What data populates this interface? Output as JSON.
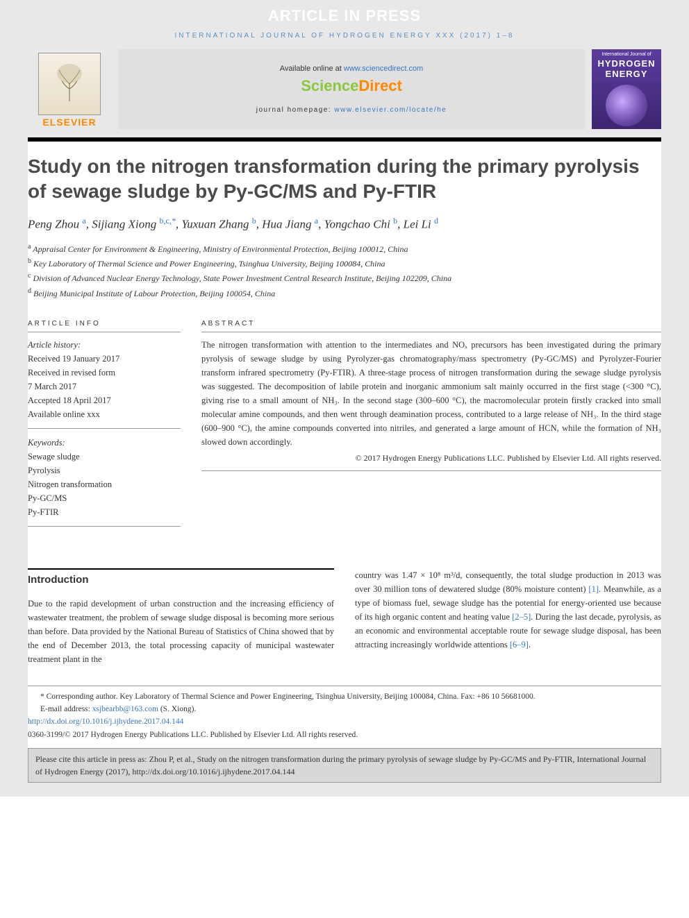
{
  "banner": {
    "text": "ARTICLE IN PRESS"
  },
  "journal_line": "INTERNATIONAL JOURNAL OF HYDROGEN ENERGY XXX (2017) 1–8",
  "header": {
    "elsevier_label": "ELSEVIER",
    "available_prefix": "Available online at ",
    "available_link": "www.sciencedirect.com",
    "sd_sci": "Science",
    "sd_dir": "Direct",
    "homepage_prefix": "journal homepage: ",
    "homepage_link": "www.elsevier.com/locate/he",
    "cover_top": "International Journal of",
    "cover_main": "HYDROGEN\nENERGY"
  },
  "title": "Study on the nitrogen transformation during the primary pyrolysis of sewage sludge by Py-GC/MS and Py-FTIR",
  "authors_html": "Peng Zhou <sup class='aff'>a</sup>, Sijiang Xiong <sup class='aff'>b,c,</sup><sup class='star'>*</sup>, Yuxuan Zhang <sup class='aff'>b</sup>, Hua Jiang <sup class='aff'>a</sup>, Yongchao Chi <sup class='aff'>b</sup>, Lei Li <sup class='aff'>d</sup>",
  "affiliations": [
    {
      "sup": "a",
      "text": "Appraisal Center for Environment & Engineering, Ministry of Environmental Protection, Beijing 100012, China"
    },
    {
      "sup": "b",
      "text": "Key Laboratory of Thermal Science and Power Engineering, Tsinghua University, Beijing 100084, China"
    },
    {
      "sup": "c",
      "text": "Division of Advanced Nuclear Energy Technology, State Power Investment Central Research Institute, Beijing 102209, China"
    },
    {
      "sup": "d",
      "text": "Beijing Municipal Institute of Labour Protection, Beijing 100054, China"
    }
  ],
  "article_info": {
    "head": "ARTICLE INFO",
    "history_label": "Article history:",
    "history": [
      "Received 19 January 2017",
      "Received in revised form",
      "7 March 2017",
      "Accepted 18 April 2017",
      "Available online xxx"
    ],
    "keywords_label": "Keywords:",
    "keywords": [
      "Sewage sludge",
      "Pyrolysis",
      "Nitrogen transformation",
      "Py-GC/MS",
      "Py-FTIR"
    ]
  },
  "abstract": {
    "head": "ABSTRACT",
    "text": "The nitrogen transformation with attention to the intermediates and NOₓ precursors has been investigated during the primary pyrolysis of sewage sludge by using Pyrolyzer-gas chromatography/mass spectrometry (Py-GC/MS) and Pyrolyzer-Fourier transform infrared spectrometry (Py-FTIR). A three-stage process of nitrogen transformation during the sewage sludge pyrolysis was suggested. The decomposition of labile protein and inorganic ammonium salt mainly occurred in the first stage (<300 °C), giving rise to a small amount of NH₃. In the second stage (300–600 °C), the macromolecular protein firstly cracked into small molecular amine compounds, and then went through deamination process, contributed to a large release of NH₃. In the third stage (600–900 °C), the amine compounds converted into nitriles, and generated a large amount of HCN, while the formation of NH₃ slowed down accordingly.",
    "copyright": "© 2017 Hydrogen Energy Publications LLC. Published by Elsevier Ltd. All rights reserved."
  },
  "intro": {
    "head": "Introduction",
    "col1": "Due to the rapid development of urban construction and the increasing efficiency of wastewater treatment, the problem of sewage sludge disposal is becoming more serious than before. Data provided by the National Bureau of Statistics of China showed that by the end of December 2013, the total processing capacity of municipal wastewater treatment plant in the",
    "col2_pre": "country was 1.47 × 10⁸ m³/d, consequently, the total sludge production in 2013 was over 30 million tons of dewatered sludge (80% moisture content) ",
    "ref1": "[1]",
    "col2_mid": ". Meanwhile, as a type of biomass fuel, sewage sludge has the potential for energy-oriented use because of its high organic content and heating value ",
    "ref2": "[2–5]",
    "col2_mid2": ". During the last decade, pyrolysis, as an economic and environmental acceptable route for sewage sludge disposal, has been attracting increasingly worldwide attentions ",
    "ref3": "[6–9]",
    "col2_end": "."
  },
  "footnotes": {
    "corr": "* Corresponding author. Key Laboratory of Thermal Science and Power Engineering, Tsinghua University, Beijing 100084, China. Fax: +86 10 56681000.",
    "email_label": "E-mail address: ",
    "email": "xsjbearbb@163.com",
    "email_suffix": " (S. Xiong).",
    "doi": "http://dx.doi.org/10.1016/j.ijhydene.2017.04.144",
    "issn": "0360-3199/© 2017 Hydrogen Energy Publications LLC. Published by Elsevier Ltd. All rights reserved."
  },
  "citebox": "Please cite this article in press as: Zhou P, et al., Study on the nitrogen transformation during the primary pyrolysis of sewage sludge by Py-GC/MS and Py-FTIR, International Journal of Hydrogen Energy (2017), http://dx.doi.org/10.1016/j.ijhydene.2017.04.144",
  "colors": {
    "link": "#3576c2",
    "orange": "#ff8800",
    "green": "#8dc63f",
    "grey_bg": "#e8e8e8"
  }
}
